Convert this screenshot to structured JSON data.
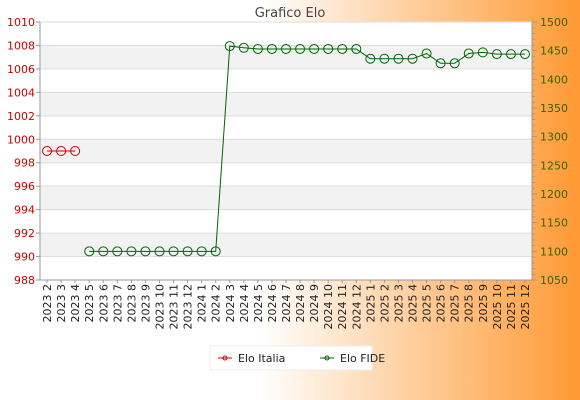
{
  "chart_data": {
    "type": "line",
    "title": "Grafico Elo",
    "categories": [
      "2023 2",
      "2023 3",
      "2023 4",
      "2023 5",
      "2023 6",
      "2023 7",
      "2023 8",
      "2023 9",
      "2023 10",
      "2023 11",
      "2023 12",
      "2024 1",
      "2024 2",
      "2024 3",
      "2024 4",
      "2024 5",
      "2024 6",
      "2024 7",
      "2024 8",
      "2024 9",
      "2024 10",
      "2024 11",
      "2024 12",
      "2025 1",
      "2025 2",
      "2025 3",
      "2025 4",
      "2025 5",
      "2025 6",
      "2025 7",
      "2025 8",
      "2025 9",
      "2025 10",
      "2025 11",
      "2025 12"
    ],
    "y_left": {
      "ticks": [
        "988",
        "990",
        "992",
        "994",
        "996",
        "998",
        "1000",
        "1002",
        "1004",
        "1006",
        "1008",
        "1010"
      ],
      "ylim": [
        988,
        1010
      ],
      "color": "#cc0000"
    },
    "y_right": {
      "ticks": [
        "1050",
        "1100",
        "1150",
        "1200",
        "1250",
        "1300",
        "1350",
        "1400",
        "1450",
        "1500"
      ],
      "ylim": [
        1050,
        1500
      ],
      "color": "#336600"
    },
    "series": [
      {
        "name": "Elo Italia",
        "axis": "left",
        "color": "#cc0000",
        "values": [
          999,
          999,
          999,
          null,
          null,
          null,
          null,
          null,
          null,
          null,
          null,
          null,
          null,
          null,
          null,
          null,
          null,
          null,
          null,
          null,
          null,
          null,
          null,
          null,
          null,
          null,
          null,
          null,
          null,
          null,
          null,
          null,
          null,
          null,
          null
        ]
      },
      {
        "name": "Elo FIDE",
        "axis": "right",
        "color": "#006600",
        "values": [
          null,
          null,
          null,
          1100,
          1100,
          1100,
          1100,
          1100,
          1100,
          1100,
          1100,
          1100,
          1100,
          1458,
          1455,
          1453,
          1453,
          1453,
          1453,
          1453,
          1453,
          1453,
          1453,
          1436,
          1436,
          1436,
          1436,
          1445,
          1428,
          1428,
          1445,
          1447,
          1444,
          1444,
          1444
        ]
      }
    ],
    "grid": true,
    "legend": "bottom-center"
  },
  "colors": {
    "background_start": "#ffffff",
    "background_end": "#ff9933",
    "band_light": "#f2f2f2",
    "band_white": "#ffffff"
  }
}
